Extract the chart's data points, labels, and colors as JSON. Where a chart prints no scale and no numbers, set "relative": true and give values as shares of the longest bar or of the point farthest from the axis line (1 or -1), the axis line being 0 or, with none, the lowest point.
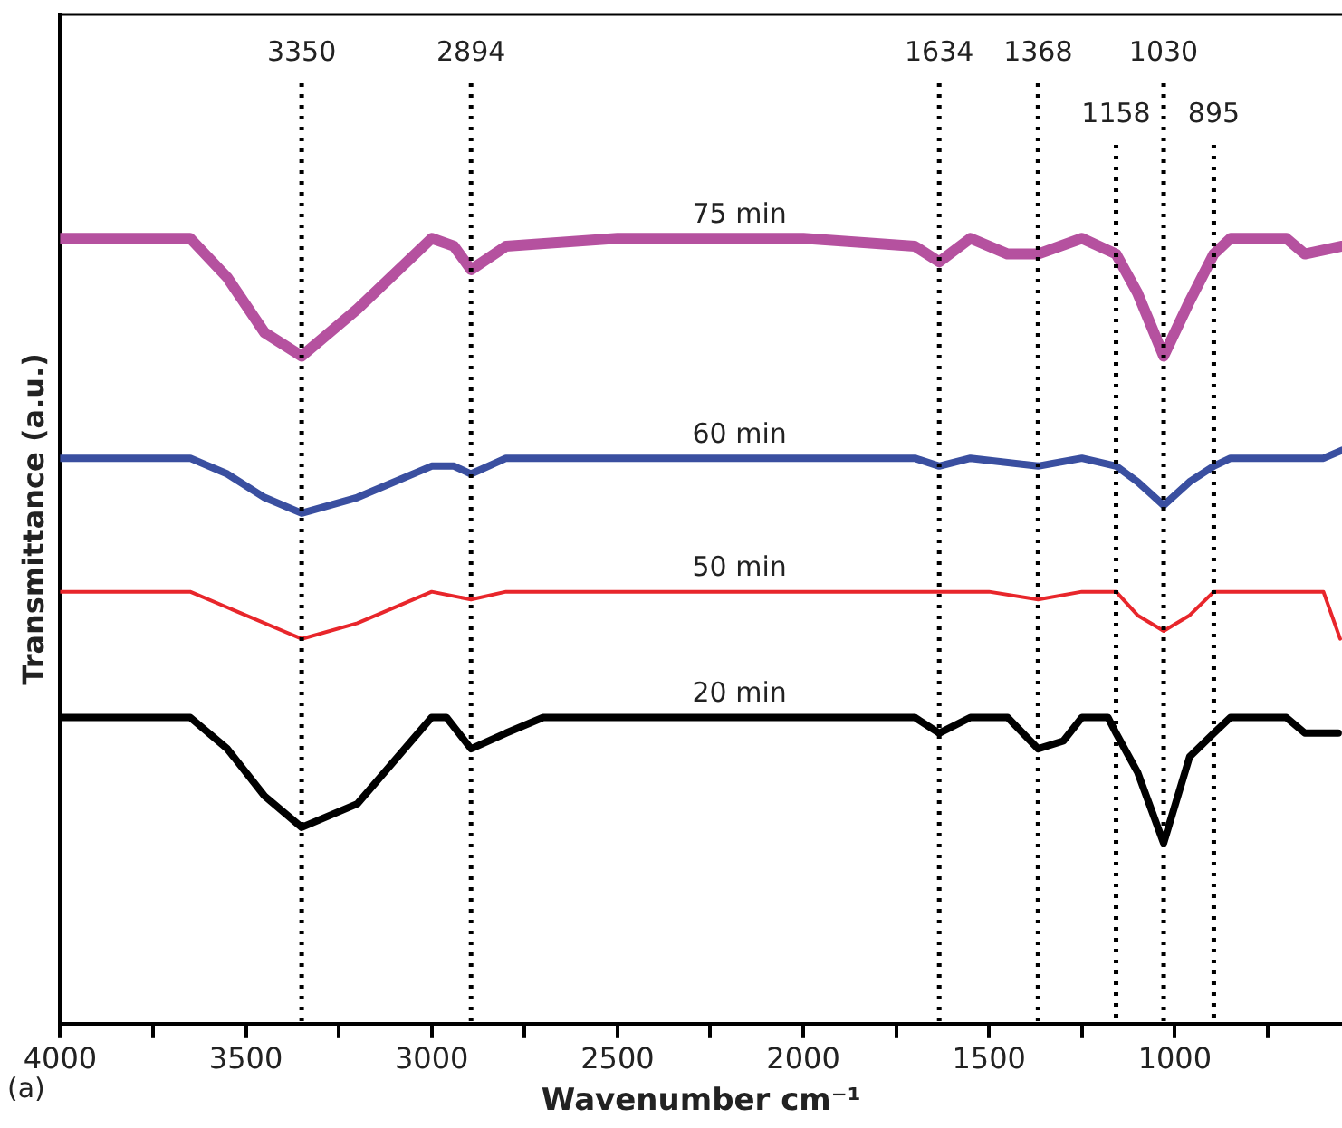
{
  "chart_data": {
    "type": "line",
    "relative": true,
    "xlabel": "Wavenumber cm⁻¹",
    "ylabel": "Transmittance (a.u.)",
    "xlim": [
      4000,
      550
    ],
    "xticks": [
      4000,
      {
        "value": 3750,
        "label": null
      },
      3500,
      {
        "value": 3250,
        "label": null
      },
      3000,
      {
        "value": 2750,
        "label": null
      },
      2500,
      {
        "value": 2250,
        "label": null
      },
      2000,
      {
        "value": 1750,
        "label": null
      },
      1500,
      {
        "value": 1250,
        "label": null
      },
      1000,
      {
        "value": 750,
        "label": null
      }
    ],
    "grid": false,
    "legend": false,
    "marker": "none",
    "line_style": "solid",
    "series": [
      {
        "name": "75 min",
        "color": "#b5519f",
        "x": [
          4000,
          3650,
          3550,
          3450,
          3350,
          3200,
          3000,
          2940,
          2894,
          2800,
          2500,
          2000,
          1700,
          1634,
          1550,
          1450,
          1368,
          1250,
          1158,
          1100,
          1030,
          960,
          895,
          850,
          700,
          650,
          550
        ],
        "values": [
          1,
          1,
          0.95,
          0.88,
          0.85,
          0.91,
          1.0,
          0.99,
          0.96,
          0.99,
          1.0,
          1.0,
          0.99,
          0.97,
          1.0,
          0.98,
          0.98,
          1.0,
          0.98,
          0.93,
          0.85,
          0.92,
          0.98,
          1.0,
          1.0,
          0.98,
          0.99
        ]
      },
      {
        "name": "60 min",
        "color": "#3a4fa0",
        "x": [
          4000,
          3650,
          3550,
          3450,
          3350,
          3200,
          3000,
          2940,
          2894,
          2800,
          1700,
          1634,
          1550,
          1368,
          1250,
          1158,
          1100,
          1030,
          960,
          895,
          850,
          600,
          550
        ],
        "values": [
          0.72,
          0.72,
          0.7,
          0.67,
          0.65,
          0.67,
          0.71,
          0.71,
          0.7,
          0.72,
          0.72,
          0.71,
          0.72,
          0.71,
          0.72,
          0.71,
          0.69,
          0.66,
          0.69,
          0.71,
          0.72,
          0.72,
          0.73
        ]
      },
      {
        "name": "50 min",
        "color": "#e8262b",
        "x": [
          4000,
          3650,
          3550,
          3400,
          3350,
          3200,
          3000,
          2894,
          2800,
          1700,
          1634,
          1500,
          1368,
          1250,
          1158,
          1100,
          1030,
          960,
          895,
          600,
          555
        ],
        "values": [
          0.55,
          0.55,
          0.53,
          0.5,
          0.49,
          0.51,
          0.55,
          0.54,
          0.55,
          0.55,
          0.55,
          0.55,
          0.54,
          0.55,
          0.55,
          0.52,
          0.5,
          0.52,
          0.55,
          0.55,
          0.49
        ]
      },
      {
        "name": "20 min",
        "color": "#000000",
        "x": [
          4000,
          3650,
          3550,
          3450,
          3350,
          3200,
          3000,
          2960,
          2894,
          2800,
          2700,
          1700,
          1634,
          1550,
          1450,
          1368,
          1300,
          1250,
          1180,
          1158,
          1100,
          1030,
          960,
          895,
          850,
          700,
          650,
          560
        ],
        "values": [
          0.39,
          0.39,
          0.35,
          0.29,
          0.25,
          0.28,
          0.39,
          0.39,
          0.35,
          0.37,
          0.39,
          0.39,
          0.37,
          0.39,
          0.39,
          0.35,
          0.36,
          0.39,
          0.39,
          0.37,
          0.32,
          0.23,
          0.34,
          0.37,
          0.39,
          0.39,
          0.37,
          0.37
        ]
      }
    ],
    "ref_lines": [
      {
        "axis": "x",
        "value": 3350,
        "label": "3350",
        "color": "#000000",
        "line_style": "dotted"
      },
      {
        "axis": "x",
        "value": 2894,
        "label": "2894",
        "color": "#000000",
        "line_style": "dotted"
      },
      {
        "axis": "x",
        "value": 1634,
        "label": "1634",
        "color": "#000000",
        "line_style": "dotted"
      },
      {
        "axis": "x",
        "value": 1368,
        "label": "1368",
        "color": "#000000",
        "line_style": "dotted"
      },
      {
        "axis": "x",
        "value": 1158,
        "label": "1158",
        "color": "#000000",
        "line_style": "dotted"
      },
      {
        "axis": "x",
        "value": 1030,
        "label": "1030",
        "color": "#000000",
        "line_style": "dotted"
      },
      {
        "axis": "x",
        "value": 895,
        "label": "895",
        "color": "#000000",
        "line_style": "dotted"
      }
    ],
    "annotations": [
      "(a)"
    ]
  }
}
